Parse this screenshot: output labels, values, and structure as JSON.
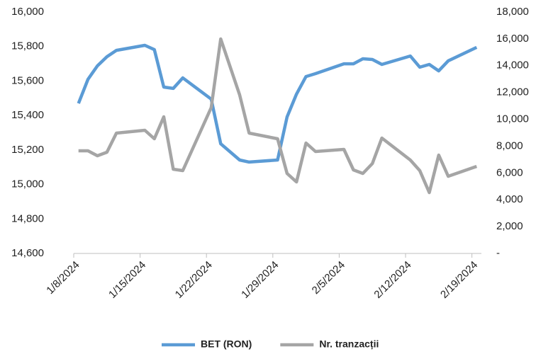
{
  "chart_data": {
    "type": "line",
    "x": [
      "2024-01-08",
      "2024-01-09",
      "2024-01-10",
      "2024-01-11",
      "2024-01-12",
      "2024-01-15",
      "2024-01-16",
      "2024-01-17",
      "2024-01-18",
      "2024-01-19",
      "2024-01-22",
      "2024-01-23",
      "2024-01-25",
      "2024-01-26",
      "2024-01-29",
      "2024-01-30",
      "2024-01-31",
      "2024-02-01",
      "2024-02-02",
      "2024-02-05",
      "2024-02-06",
      "2024-02-07",
      "2024-02-08",
      "2024-02-09",
      "2024-02-12",
      "2024-02-13",
      "2024-02-14",
      "2024-02-15",
      "2024-02-16",
      "2024-02-19"
    ],
    "series": [
      {
        "name": "BET (RON)",
        "color": "#5b9bd5",
        "axis": "y",
        "values": [
          15470,
          15610,
          15688,
          15741,
          15778,
          15807,
          15782,
          15565,
          15557,
          15618,
          15495,
          15236,
          15142,
          15130,
          15142,
          15392,
          15524,
          15626,
          15643,
          15700,
          15700,
          15729,
          15725,
          15696,
          15745,
          15680,
          15696,
          15659,
          15717,
          15795
        ]
      },
      {
        "name": "Nr. tranzacții",
        "color": "#a5a5a5",
        "axis": "y2",
        "values": [
          7655,
          7655,
          7285,
          7549,
          8974,
          9185,
          8552,
          10188,
          6282,
          6176,
          10875,
          15995,
          11825,
          8974,
          8552,
          5965,
          5332,
          8235,
          7602,
          7760,
          6229,
          5965,
          6704,
          8605,
          6968,
          6176,
          4540,
          7338,
          5754,
          6493
        ]
      }
    ],
    "xlim": [
      "2024-01-08",
      "2024-02-20"
    ],
    "xticks": [
      {
        "value": "2024-01-08",
        "label": "1/8/2024"
      },
      {
        "value": "2024-01-15",
        "label": "1/15/2024"
      },
      {
        "value": "2024-01-22",
        "label": "1/22/2024"
      },
      {
        "value": "2024-01-29",
        "label": "1/29/2024"
      },
      {
        "value": "2024-02-05",
        "label": "2/5/2024"
      },
      {
        "value": "2024-02-12",
        "label": "2/12/2024"
      },
      {
        "value": "2024-02-19",
        "label": "2/19/2024"
      }
    ],
    "ylim": [
      14600,
      16000
    ],
    "yticks": [
      {
        "value": 14600,
        "label": "14,600"
      },
      {
        "value": 14800,
        "label": "14,800"
      },
      {
        "value": 15000,
        "label": "15,000"
      },
      {
        "value": 15200,
        "label": "15,200"
      },
      {
        "value": 15400,
        "label": "15,400"
      },
      {
        "value": 15600,
        "label": "15,600"
      },
      {
        "value": 15800,
        "label": "15,800"
      },
      {
        "value": 16000,
        "label": "16,000"
      }
    ],
    "y2lim": [
      0,
      18000
    ],
    "y2ticks": [
      {
        "value": 0,
        "label": "-"
      },
      {
        "value": 2000,
        "label": "2,000"
      },
      {
        "value": 4000,
        "label": "4,000"
      },
      {
        "value": 6000,
        "label": "6,000"
      },
      {
        "value": 8000,
        "label": "8,000"
      },
      {
        "value": 10000,
        "label": "10,000"
      },
      {
        "value": 12000,
        "label": "12,000"
      },
      {
        "value": 14000,
        "label": "14,000"
      },
      {
        "value": 16000,
        "label": "16,000"
      },
      {
        "value": 18000,
        "label": "18,000"
      }
    ],
    "grid": false,
    "legend": "bottom"
  }
}
